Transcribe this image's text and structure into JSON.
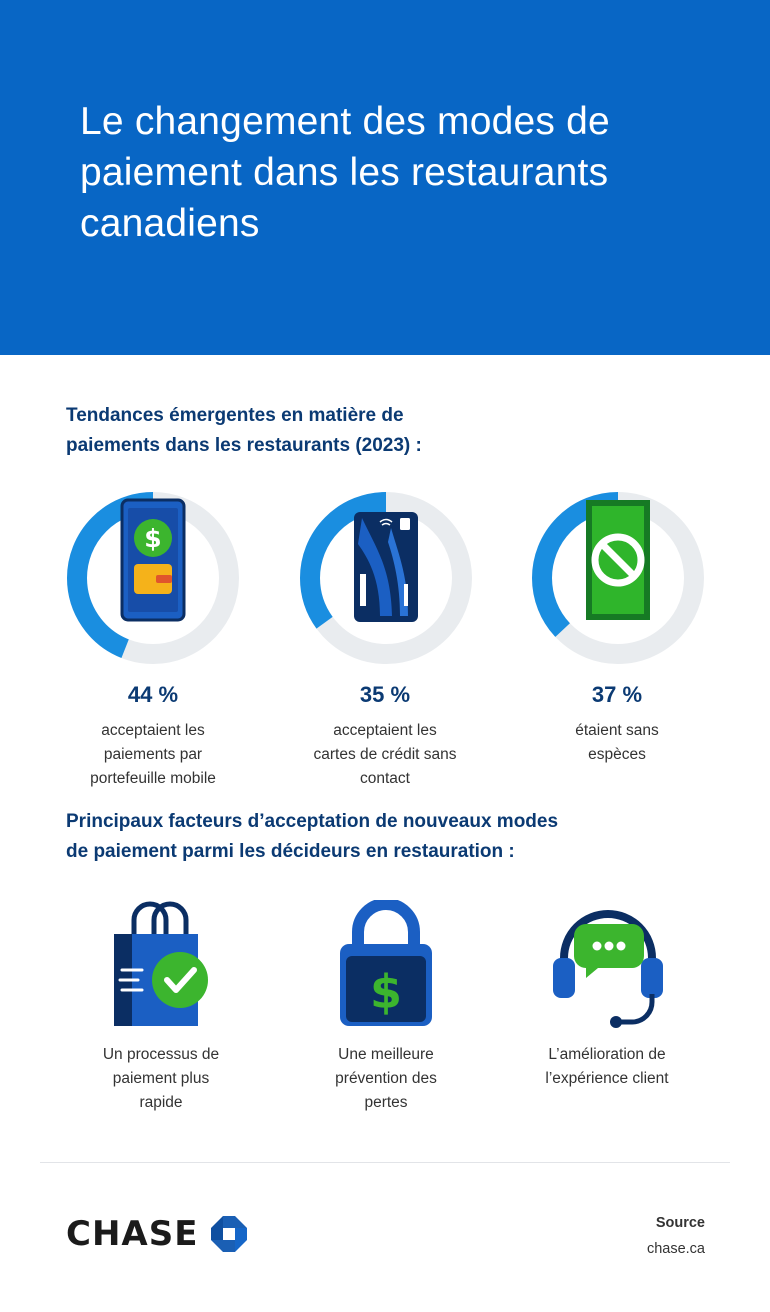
{
  "header": {
    "title": "Le changement des modes de paiement dans les restaurants canadiens"
  },
  "trends": {
    "title_line1": "Tendances émergentes en matière de",
    "title_line2": "paiements dans les restaurants (2023) :",
    "items": [
      {
        "percent_label": "44 %",
        "percent": 44,
        "desc_lines": [
          "acceptaient les",
          "paiements par",
          "portefeuille mobile"
        ],
        "icon": "mobile-wallet-icon"
      },
      {
        "percent_label": "35 %",
        "percent": 35,
        "desc_lines": [
          "acceptaient les",
          "cartes de crédit sans",
          "contact"
        ],
        "icon": "contactless-card-icon"
      },
      {
        "percent_label": "37 %",
        "percent": 37,
        "desc_lines": [
          "étaient sans",
          "espèces"
        ],
        "icon": "no-cash-icon"
      }
    ]
  },
  "factors": {
    "title_line1": "Principaux facteurs d’acceptation de nouveaux modes",
    "title_line2": "de paiement parmi les décideurs en restauration :",
    "items": [
      {
        "desc_lines": [
          "Un processus de",
          "paiement plus",
          "rapide"
        ],
        "icon": "shopping-bag-check-icon"
      },
      {
        "desc_lines": [
          "Une meilleure",
          "prévention des",
          "pertes"
        ],
        "icon": "padlock-dollar-icon"
      },
      {
        "desc_lines": [
          "L’amélioration de",
          "l’expérience client"
        ],
        "icon": "headset-chat-icon"
      }
    ]
  },
  "footer": {
    "brand": "CHASE",
    "source_label": "Source",
    "source_value": "chase.ca"
  },
  "colors": {
    "header_bg": "#0866c5",
    "accent_blue": "#1a8ee0",
    "donut_track": "#e9ecef",
    "heading_navy": "#0b3a73",
    "green": "#3cb52e"
  }
}
